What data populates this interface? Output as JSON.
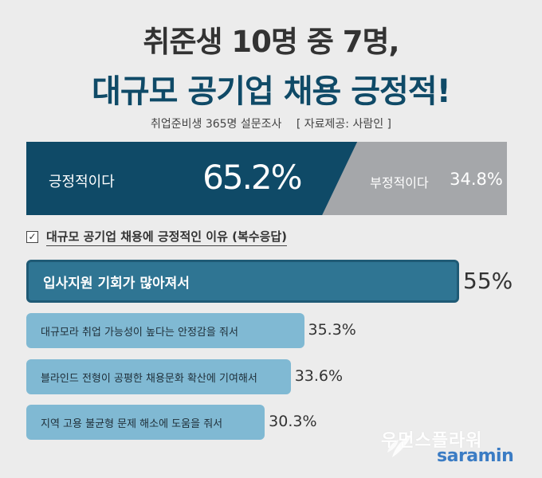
{
  "header": {
    "title_line1": "취준생 10명 중 7명,",
    "title_line2": "대규모 공기업 채용 긍정적!",
    "survey": "취업준비생 365명 설문조사",
    "source": "[ 자료제공: 사람인 ]"
  },
  "split": {
    "positive_label": "긍정적이다",
    "positive_value": "65.2%",
    "negative_label": "부정적이다",
    "negative_value": "34.8%",
    "positive_pct": 65.2,
    "negative_pct": 34.8,
    "positive_color": "#0f4a67",
    "negative_color": "#a5a7aa"
  },
  "section": {
    "check_mark": "✓",
    "title": "대규모 공기업 채용에 긍정적인 이유 (복수응답)"
  },
  "chart_data": {
    "type": "bar",
    "orientation": "horizontal",
    "categories": [
      "입사지원 기회가 많아져서",
      "대규모라  취업 가능성이 높다는 안정감을 줘서",
      "블라인드 전형이 공평한 채용문화 확산에 기여해서",
      "지역 고용 불균형 문제 해소에 도움을 줘서"
    ],
    "values": [
      55,
      35.3,
      33.6,
      30.3
    ],
    "value_labels": [
      "55%",
      "35.3%",
      "33.6%",
      "30.3%"
    ],
    "unit": "%",
    "colors": {
      "top": "#2f7593",
      "other": "#80b9d3"
    }
  },
  "branding": {
    "watermark": "우먼스플라워",
    "logo": "saramin"
  }
}
